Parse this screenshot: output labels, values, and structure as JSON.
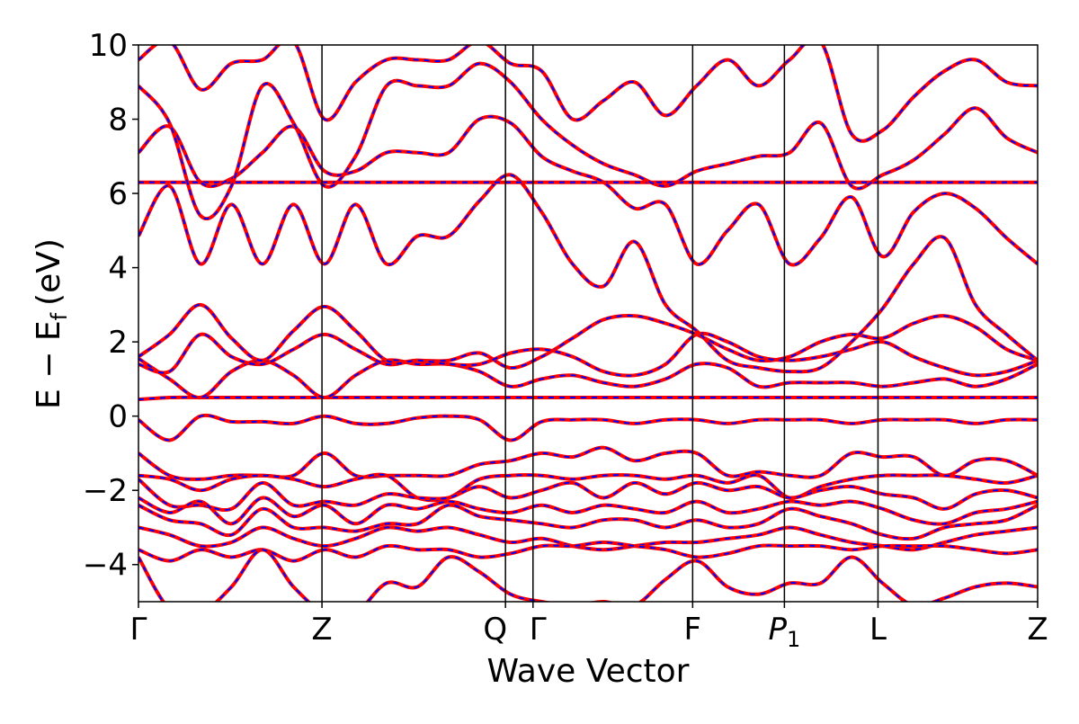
{
  "chart_data": {
    "type": "line",
    "title": "",
    "xlabel": "Wave Vector",
    "ylabel": "E − E",
    "ylabel_subscript": "f",
    "ylabel_unit": "(eV)",
    "ylim": [
      -5,
      10
    ],
    "yticks": [
      {
        "value": -4,
        "label": "−4"
      },
      {
        "value": -2,
        "label": "−2"
      },
      {
        "value": 0,
        "label": "0"
      },
      {
        "value": 2,
        "label": "2"
      },
      {
        "value": 4,
        "label": "4"
      },
      {
        "value": 6,
        "label": "6"
      },
      {
        "value": 8,
        "label": "8"
      },
      {
        "value": 10,
        "label": "10"
      }
    ],
    "xlim": [
      0,
      4.9
    ],
    "high_symmetry_points": [
      {
        "label": "Γ",
        "sub": "",
        "x": 0.0
      },
      {
        "label": "Z",
        "sub": "",
        "x": 1.0
      },
      {
        "label": "Q",
        "sub": "",
        "x": 2.0
      },
      {
        "label": "Γ",
        "sub": "",
        "x": 2.15
      },
      {
        "label": "F",
        "sub": "",
        "x": 3.02
      },
      {
        "label": "P",
        "sub": "1",
        "x": 3.52
      },
      {
        "label": "L",
        "sub": "",
        "x": 4.03
      },
      {
        "label": "Z",
        "sub": "",
        "x": 4.9
      }
    ],
    "grid": false,
    "series_styles": [
      {
        "role": "solid",
        "color": "#ff0000"
      },
      {
        "role": "dashed",
        "color": "#0000ff"
      }
    ],
    "bands": [
      {
        "y": [
          -0.1,
          -0.65,
          0.0,
          -0.15,
          -0.15,
          -0.2,
          0.0,
          -0.2,
          -0.2,
          -0.05,
          0.0,
          -0.1,
          -0.65,
          -0.15,
          -0.1,
          -0.1,
          -0.2,
          -0.1,
          -0.1,
          -0.2,
          -0.1,
          -0.1,
          -0.1,
          -0.2,
          -0.1,
          -0.1,
          -0.1,
          -0.2,
          -0.1,
          -0.1
        ]
      },
      {
        "y": [
          0.45,
          0.5,
          0.5,
          0.5,
          0.5,
          0.5,
          0.5,
          0.5,
          0.5,
          0.5,
          0.5,
          0.5,
          0.5,
          0.5,
          0.5,
          0.5,
          0.5,
          0.5,
          0.5,
          0.5,
          0.5,
          0.5,
          0.5,
          0.5,
          0.5,
          0.5,
          0.5,
          0.5,
          0.5,
          0.5
        ]
      },
      {
        "y": [
          1.55,
          1.0,
          0.5,
          1.2,
          1.5,
          1.1,
          0.5,
          1.1,
          1.5,
          1.4,
          1.4,
          1.2,
          0.8,
          1.0,
          1.1,
          0.9,
          0.8,
          1.0,
          1.4,
          1.3,
          0.8,
          0.9,
          0.9,
          0.9,
          0.8,
          0.9,
          1.0,
          0.8,
          1.0,
          1.4
        ]
      },
      {
        "y": [
          1.6,
          2.2,
          3.0,
          2.1,
          1.5,
          2.3,
          2.95,
          2.3,
          1.5,
          1.5,
          1.5,
          1.7,
          1.3,
          1.6,
          2.1,
          2.6,
          2.7,
          2.5,
          2.2,
          1.8,
          1.5,
          1.6,
          2.0,
          2.2,
          2.1,
          2.5,
          2.7,
          2.4,
          1.8,
          1.5
        ]
      },
      {
        "y": [
          1.4,
          1.2,
          2.2,
          1.6,
          1.4,
          1.8,
          2.2,
          1.8,
          1.4,
          1.5,
          1.4,
          1.4,
          1.7,
          1.8,
          1.6,
          1.2,
          1.1,
          1.4,
          2.2,
          2.0,
          1.6,
          1.5,
          1.6,
          1.8,
          2.0,
          1.6,
          1.3,
          1.1,
          1.2,
          1.5
        ]
      },
      {
        "y": [
          4.85,
          6.2,
          4.1,
          5.7,
          4.1,
          5.7,
          4.1,
          5.7,
          4.1,
          4.85,
          4.85,
          5.8,
          6.5,
          5.5,
          4.1,
          3.5,
          4.7,
          3.0,
          2.3,
          1.5,
          1.3,
          1.2,
          1.3,
          2.0,
          2.9,
          4.1,
          4.8,
          3.0,
          2.2,
          1.5
        ]
      },
      {
        "y": [
          6.3,
          6.3,
          6.3,
          6.3,
          6.3,
          6.3,
          6.3,
          6.3,
          6.3,
          6.3,
          6.3,
          6.3,
          6.3,
          6.3,
          6.3,
          6.3,
          6.3,
          6.3,
          6.3,
          6.3,
          6.3,
          6.3,
          6.3,
          6.3,
          6.3,
          6.3,
          6.3,
          6.3,
          6.3,
          6.3
        ]
      },
      {
        "y": [
          7.1,
          7.8,
          6.3,
          6.4,
          7.1,
          7.8,
          6.6,
          6.6,
          7.1,
          7.1,
          7.1,
          8.0,
          7.9,
          7.0,
          6.6,
          6.3,
          5.6,
          5.7,
          4.1,
          5.0,
          5.7,
          4.1,
          4.8,
          5.9,
          4.3,
          5.5,
          6.0,
          5.6,
          4.8,
          4.1
        ]
      },
      {
        "y": [
          8.9,
          7.9,
          5.4,
          6.2,
          8.9,
          7.9,
          6.2,
          7.0,
          8.9,
          8.9,
          8.9,
          9.5,
          9.0,
          8.0,
          7.3,
          6.8,
          6.5,
          6.2,
          6.6,
          6.8,
          7.0,
          7.1,
          7.9,
          6.2,
          6.5,
          6.9,
          7.6,
          8.3,
          7.5,
          7.1
        ]
      },
      {
        "y": [
          9.6,
          10.1,
          8.8,
          9.5,
          9.6,
          10.1,
          8.0,
          9.0,
          9.6,
          9.6,
          9.6,
          10.1,
          9.5,
          9.3,
          8.0,
          8.5,
          9.0,
          8.1,
          8.9,
          9.6,
          8.9,
          9.6,
          10.1,
          7.6,
          7.7,
          8.6,
          9.3,
          9.6,
          9.0,
          8.9
        ]
      },
      {
        "y": [
          -1.0,
          -1.6,
          -1.7,
          -1.6,
          -1.6,
          -1.6,
          -1.0,
          -1.6,
          -1.6,
          -1.6,
          -1.6,
          -1.3,
          -1.2,
          -1.0,
          -1.1,
          -0.85,
          -1.2,
          -1.0,
          -1.0,
          -1.6,
          -1.5,
          -1.6,
          -1.6,
          -1.0,
          -1.1,
          -1.1,
          -1.6,
          -1.2,
          -1.2,
          -1.6
        ]
      },
      {
        "y": [
          -1.6,
          -1.7,
          -2.0,
          -1.7,
          -1.6,
          -1.7,
          -1.9,
          -1.7,
          -1.6,
          -2.2,
          -2.2,
          -1.7,
          -1.6,
          -1.6,
          -1.7,
          -1.6,
          -1.6,
          -1.7,
          -1.6,
          -1.8,
          -1.6,
          -2.2,
          -1.9,
          -1.7,
          -1.6,
          -1.6,
          -1.6,
          -1.7,
          -1.8,
          -1.6
        ]
      },
      {
        "y": [
          -1.7,
          -2.4,
          -2.4,
          -2.5,
          -1.8,
          -2.4,
          -2.3,
          -2.4,
          -2.1,
          -2.2,
          -2.2,
          -1.9,
          -2.2,
          -2.0,
          -1.8,
          -2.2,
          -1.8,
          -2.1,
          -1.8,
          -2.0,
          -1.9,
          -2.2,
          -2.0,
          -1.9,
          -2.1,
          -2.2,
          -2.5,
          -2.1,
          -2.0,
          -2.2
        ]
      },
      {
        "y": [
          -2.2,
          -2.6,
          -2.3,
          -2.9,
          -2.2,
          -2.7,
          -2.4,
          -2.9,
          -2.4,
          -2.5,
          -2.3,
          -2.5,
          -2.6,
          -2.4,
          -2.6,
          -2.4,
          -2.5,
          -2.6,
          -2.3,
          -2.6,
          -2.5,
          -2.3,
          -2.4,
          -2.3,
          -2.5,
          -2.8,
          -2.9,
          -2.6,
          -2.5,
          -2.3
        ]
      },
      {
        "y": [
          -2.4,
          -2.8,
          -2.9,
          -3.2,
          -2.5,
          -3.0,
          -3.0,
          -3.1,
          -2.9,
          -2.9,
          -2.4,
          -2.7,
          -2.8,
          -2.9,
          -3.0,
          -2.8,
          -2.8,
          -3.0,
          -2.8,
          -3.0,
          -2.9,
          -2.5,
          -2.7,
          -2.9,
          -3.2,
          -3.3,
          -3.0,
          -2.9,
          -2.8,
          -2.4
        ]
      },
      {
        "y": [
          -3.0,
          -3.2,
          -3.5,
          -3.4,
          -3.0,
          -3.3,
          -3.5,
          -3.3,
          -3.0,
          -3.1,
          -3.0,
          -3.2,
          -3.4,
          -3.3,
          -3.5,
          -3.6,
          -3.5,
          -3.4,
          -3.4,
          -3.3,
          -3.2,
          -3.0,
          -3.2,
          -3.4,
          -3.5,
          -3.6,
          -3.4,
          -3.2,
          -3.1,
          -3.0
        ]
      },
      {
        "y": [
          -3.6,
          -3.9,
          -3.6,
          -3.8,
          -3.6,
          -3.9,
          -3.6,
          -3.8,
          -3.5,
          -3.6,
          -3.6,
          -3.8,
          -3.7,
          -3.5,
          -3.5,
          -3.4,
          -3.5,
          -3.6,
          -3.8,
          -3.7,
          -3.5,
          -3.5,
          -3.5,
          -3.6,
          -3.5,
          -3.5,
          -3.5,
          -3.6,
          -3.7,
          -3.6
        ]
      },
      {
        "y": [
          -3.8,
          -5.2,
          -5.3,
          -4.6,
          -3.6,
          -4.6,
          -5.3,
          -5.3,
          -4.5,
          -4.6,
          -3.8,
          -4.2,
          -4.8,
          -5.0,
          -5.1,
          -5.0,
          -5.1,
          -4.4,
          -3.9,
          -4.6,
          -4.8,
          -4.5,
          -4.5,
          -3.8,
          -4.5,
          -5.1,
          -4.9,
          -4.6,
          -4.5,
          -4.6
        ]
      }
    ]
  }
}
